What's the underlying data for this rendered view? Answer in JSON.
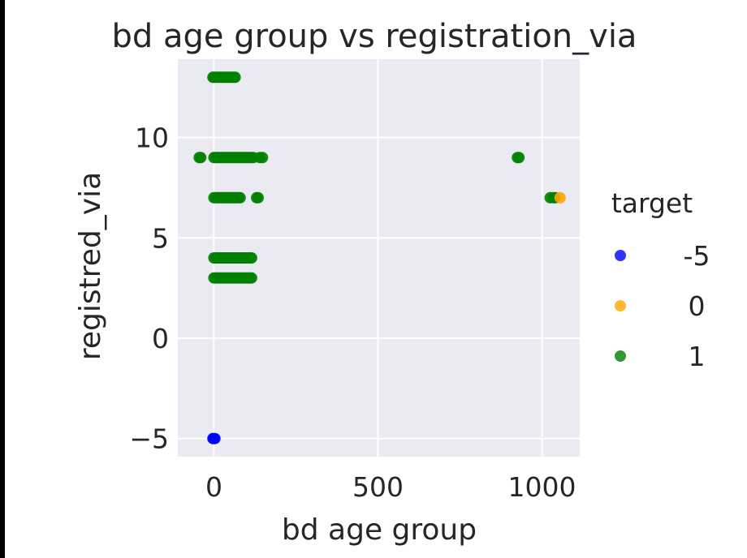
{
  "chart_data": {
    "type": "scatter",
    "title": "bd age group vs registration_via",
    "xlabel": "bd age group",
    "ylabel": "registred_via",
    "xlim": [
      -110,
      1115
    ],
    "ylim": [
      -5.9,
      13.9
    ],
    "xticks": [
      0,
      500,
      1000
    ],
    "yticks": [
      -5,
      0,
      5,
      10
    ],
    "xtick_labels": [
      "0",
      "500",
      "1000"
    ],
    "ytick_labels": [
      "−5",
      "0",
      "5",
      "10"
    ],
    "grid": true,
    "legend": {
      "title": "target",
      "placement": "right",
      "entries": [
        {
          "label": "-5",
          "color": "#0000ff"
        },
        {
          "label": "0",
          "color": "#ffa500"
        },
        {
          "label": "1",
          "color": "#008000"
        }
      ]
    },
    "series": [
      {
        "name": "-5",
        "color": "#0000ff",
        "points": [
          [
            -3,
            -5
          ],
          [
            0,
            -5
          ],
          [
            3,
            -5
          ]
        ]
      },
      {
        "name": "0",
        "color": "#ffa500",
        "points": [
          [
            1055,
            7
          ]
        ]
      },
      {
        "name": "1",
        "color": "#008000",
        "points": [
          [
            -3,
            13
          ],
          [
            0,
            13
          ],
          [
            5,
            13
          ],
          [
            10,
            13
          ],
          [
            15,
            13
          ],
          [
            20,
            13
          ],
          [
            25,
            13
          ],
          [
            30,
            13
          ],
          [
            35,
            13
          ],
          [
            40,
            13
          ],
          [
            45,
            13
          ],
          [
            50,
            13
          ],
          [
            55,
            13
          ],
          [
            60,
            13
          ],
          [
            65,
            13
          ],
          [
            -45,
            9
          ],
          [
            -40,
            9
          ],
          [
            0,
            9
          ],
          [
            5,
            9
          ],
          [
            10,
            9
          ],
          [
            15,
            9
          ],
          [
            20,
            9
          ],
          [
            25,
            9
          ],
          [
            30,
            9
          ],
          [
            35,
            9
          ],
          [
            40,
            9
          ],
          [
            45,
            9
          ],
          [
            50,
            9
          ],
          [
            55,
            9
          ],
          [
            60,
            9
          ],
          [
            65,
            9
          ],
          [
            70,
            9
          ],
          [
            75,
            9
          ],
          [
            80,
            9
          ],
          [
            85,
            9
          ],
          [
            90,
            9
          ],
          [
            95,
            9
          ],
          [
            100,
            9
          ],
          [
            105,
            9
          ],
          [
            110,
            9
          ],
          [
            115,
            9
          ],
          [
            120,
            9
          ],
          [
            140,
            9
          ],
          [
            148,
            9
          ],
          [
            925,
            9
          ],
          [
            930,
            9
          ],
          [
            0,
            7
          ],
          [
            5,
            7
          ],
          [
            10,
            7
          ],
          [
            15,
            7
          ],
          [
            20,
            7
          ],
          [
            25,
            7
          ],
          [
            30,
            7
          ],
          [
            35,
            7
          ],
          [
            40,
            7
          ],
          [
            45,
            7
          ],
          [
            50,
            7
          ],
          [
            55,
            7
          ],
          [
            60,
            7
          ],
          [
            65,
            7
          ],
          [
            70,
            7
          ],
          [
            75,
            7
          ],
          [
            80,
            7
          ],
          [
            130,
            7
          ],
          [
            135,
            7
          ],
          [
            1025,
            7
          ],
          [
            1035,
            7
          ],
          [
            1040,
            7
          ],
          [
            0,
            4
          ],
          [
            5,
            4
          ],
          [
            10,
            4
          ],
          [
            15,
            4
          ],
          [
            20,
            4
          ],
          [
            25,
            4
          ],
          [
            30,
            4
          ],
          [
            35,
            4
          ],
          [
            40,
            4
          ],
          [
            45,
            4
          ],
          [
            50,
            4
          ],
          [
            55,
            4
          ],
          [
            60,
            4
          ],
          [
            65,
            4
          ],
          [
            70,
            4
          ],
          [
            75,
            4
          ],
          [
            80,
            4
          ],
          [
            85,
            4
          ],
          [
            90,
            4
          ],
          [
            95,
            4
          ],
          [
            100,
            4
          ],
          [
            105,
            4
          ],
          [
            110,
            4
          ],
          [
            115,
            4
          ],
          [
            0,
            3
          ],
          [
            5,
            3
          ],
          [
            10,
            3
          ],
          [
            15,
            3
          ],
          [
            20,
            3
          ],
          [
            25,
            3
          ],
          [
            30,
            3
          ],
          [
            35,
            3
          ],
          [
            40,
            3
          ],
          [
            45,
            3
          ],
          [
            50,
            3
          ],
          [
            55,
            3
          ],
          [
            60,
            3
          ],
          [
            65,
            3
          ],
          [
            70,
            3
          ],
          [
            75,
            3
          ],
          [
            80,
            3
          ],
          [
            85,
            3
          ],
          [
            90,
            3
          ],
          [
            95,
            3
          ],
          [
            100,
            3
          ],
          [
            105,
            3
          ],
          [
            110,
            3
          ],
          [
            115,
            3
          ]
        ]
      }
    ]
  }
}
